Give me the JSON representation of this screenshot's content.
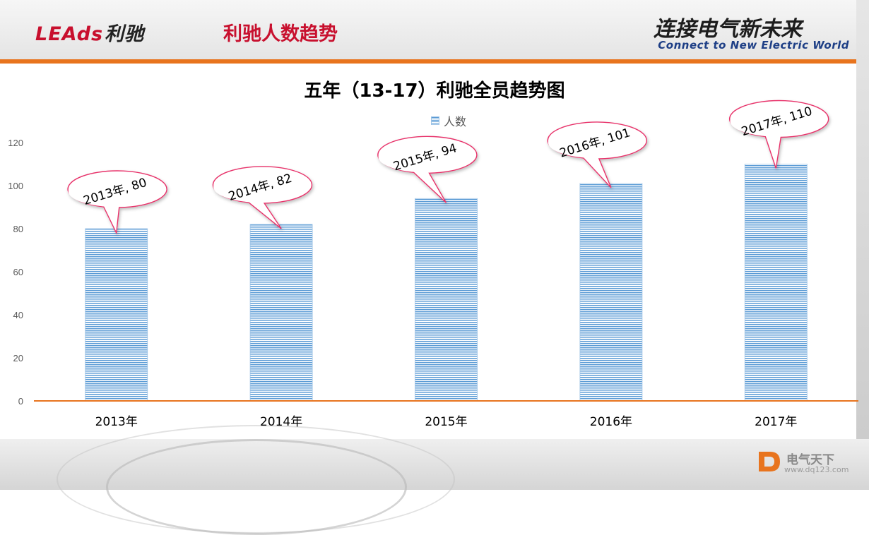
{
  "header": {
    "brand_latin": "LEAds",
    "brand_cn": "利驰",
    "page_title": "利驰人数趋势",
    "slogan_cn": "连接电气新未来",
    "slogan_en": "Connect to New Electric World"
  },
  "watermark": {
    "name": "电气天下",
    "url": "www.dq123.com"
  },
  "colors": {
    "accent_orange": "#e8741e",
    "brand_red": "#c8102e",
    "bar_blue": "#5b9bd5",
    "callout_border": "#e8336b"
  },
  "chart_data": {
    "type": "bar",
    "title": "五年（13-17）利驰全员趋势图",
    "legend_position": "top",
    "categories": [
      "2013年",
      "2014年",
      "2015年",
      "2016年",
      "2017年"
    ],
    "series": [
      {
        "name": "人数",
        "values": [
          80,
          82,
          94,
          101,
          110
        ]
      }
    ],
    "data_labels": [
      "2013年, 80",
      "2014年, 82",
      "2015年, 94",
      "2016年, 101",
      "2017年, 110"
    ],
    "yticks": [
      0,
      20,
      40,
      60,
      80,
      100,
      120
    ],
    "ylim": [
      0,
      120
    ],
    "grid": false
  }
}
